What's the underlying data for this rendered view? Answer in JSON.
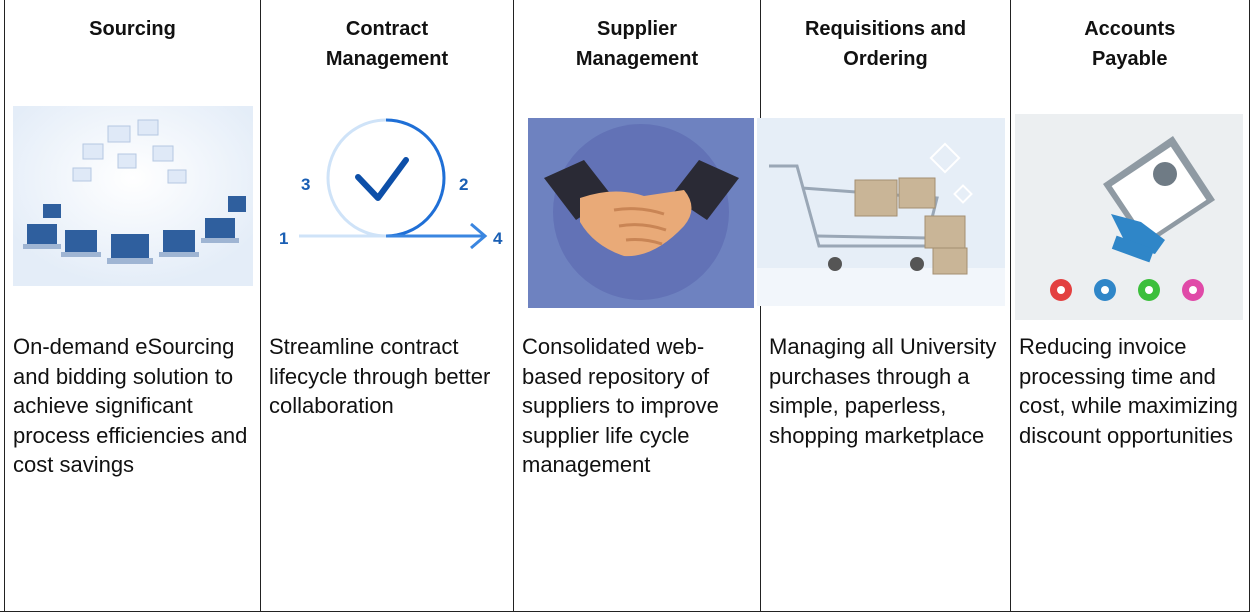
{
  "columns": [
    {
      "title": [
        "Sourcing"
      ],
      "description": "On-demand eSourcing and bidding solution to achieve significant process efficiencies and cost savings"
    },
    {
      "title": [
        "Contract",
        "Management"
      ],
      "image_labels": [
        "1",
        "2",
        "3",
        "4"
      ],
      "description": "Streamline contract lifecycle through better collaboration"
    },
    {
      "title": [
        "Supplier",
        "Management"
      ],
      "description": "Consolidated web-based repository of suppliers to improve supplier life cycle management"
    },
    {
      "title": [
        "Requisitions and",
        "Ordering"
      ],
      "description": "Managing all University purchases through a simple, paperless, shopping marketplace"
    },
    {
      "title": [
        "Accounts",
        "Payable"
      ],
      "description": "Reducing invoice processing time and cost, while maximizing discount opportunities"
    }
  ]
}
